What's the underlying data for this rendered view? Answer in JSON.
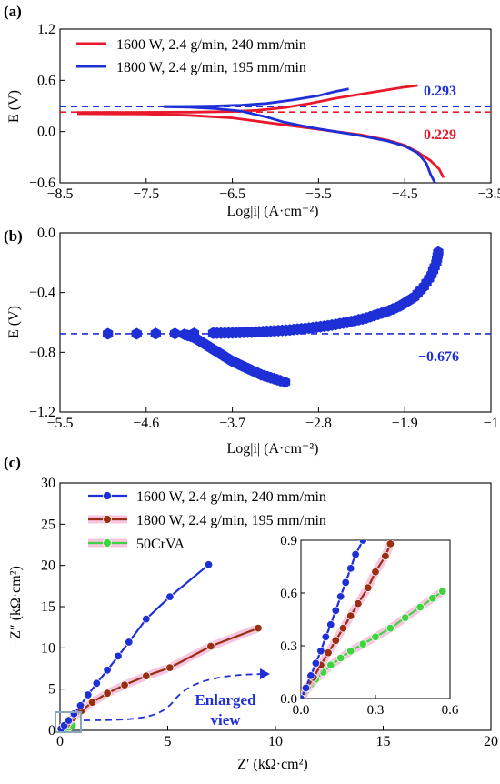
{
  "colors": {
    "red": "#e8192c",
    "blue": "#1f2fd6",
    "brown": "#9b2d12",
    "green": "#3fd43f",
    "pink": "#f4b6d8",
    "inset_box": "#8aa6b8"
  },
  "chart_data": [
    {
      "id": "a",
      "panel_label": "(a)",
      "type": "line",
      "xlabel": "Log|i| (A·cm⁻²)",
      "ylabel": "E (V)",
      "xlim": [
        -8.5,
        -3.5
      ],
      "ylim": [
        -0.6,
        1.2
      ],
      "xticks": [
        -8.5,
        -7.5,
        -6.5,
        -5.5,
        -4.5,
        -3.5
      ],
      "xtick_labels": [
        "−8.5",
        "−7.5",
        "−6.5",
        "−5.5",
        "−4.5",
        "−3.5"
      ],
      "yticks": [
        -0.6,
        0.0,
        0.6,
        1.2
      ],
      "ytick_labels": [
        "−0.6",
        "0.0",
        "0.6",
        "1.2"
      ],
      "legend_position": "top-left",
      "series": [
        {
          "name": "1600 W, 2.4 g/min, 240 mm/min",
          "color": "red",
          "anodic": [
            [
              -8.3,
              0.223
            ],
            [
              -7.5,
              0.225
            ],
            [
              -7.0,
              0.228
            ],
            [
              -6.5,
              0.235
            ],
            [
              -6.2,
              0.25
            ],
            [
              -5.9,
              0.28
            ],
            [
              -5.6,
              0.33
            ],
            [
              -5.3,
              0.39
            ],
            [
              -5.0,
              0.44
            ],
            [
              -4.7,
              0.49
            ],
            [
              -4.5,
              0.52
            ],
            [
              -4.35,
              0.54
            ]
          ],
          "cathodic": [
            [
              -8.3,
              0.21
            ],
            [
              -7.5,
              0.205
            ],
            [
              -7.0,
              0.19
            ],
            [
              -6.5,
              0.16
            ],
            [
              -6.2,
              0.12
            ],
            [
              -5.9,
              0.08
            ],
            [
              -5.6,
              0.04
            ],
            [
              -5.3,
              0.0
            ],
            [
              -5.0,
              -0.04
            ],
            [
              -4.7,
              -0.1
            ],
            [
              -4.5,
              -0.16
            ],
            [
              -4.35,
              -0.24
            ],
            [
              -4.2,
              -0.34
            ],
            [
              -4.1,
              -0.44
            ],
            [
              -4.05,
              -0.54
            ]
          ]
        },
        {
          "name": "1800 W, 2.4 g/min, 195 mm/min",
          "color": "blue",
          "anodic": [
            [
              -7.3,
              0.295
            ],
            [
              -7.0,
              0.296
            ],
            [
              -6.7,
              0.3
            ],
            [
              -6.4,
              0.31
            ],
            [
              -6.1,
              0.33
            ],
            [
              -5.8,
              0.37
            ],
            [
              -5.5,
              0.42
            ],
            [
              -5.3,
              0.47
            ],
            [
              -5.15,
              0.5
            ]
          ],
          "cathodic": [
            [
              -7.3,
              0.29
            ],
            [
              -7.0,
              0.285
            ],
            [
              -6.7,
              0.27
            ],
            [
              -6.4,
              0.24
            ],
            [
              -6.1,
              0.17
            ],
            [
              -5.9,
              0.11
            ],
            [
              -5.6,
              0.05
            ],
            [
              -5.3,
              0.0
            ],
            [
              -5.0,
              -0.05
            ],
            [
              -4.7,
              -0.11
            ],
            [
              -4.5,
              -0.17
            ],
            [
              -4.35,
              -0.25
            ],
            [
              -4.25,
              -0.37
            ],
            [
              -4.2,
              -0.5
            ],
            [
              -4.15,
              -0.6
            ]
          ]
        }
      ],
      "annotations": [
        {
          "text": "0.293",
          "color": "blue",
          "hline": 0.293
        },
        {
          "text": "0.229",
          "color": "red",
          "hline": 0.229
        }
      ]
    },
    {
      "id": "b",
      "panel_label": "(b)",
      "type": "scatter",
      "xlabel": "Log|i| (A·cm⁻²)",
      "ylabel": "E (V)",
      "xlim": [
        -5.5,
        -1.0
      ],
      "ylim": [
        -1.2,
        0.0
      ],
      "xticks": [
        -5.5,
        -4.6,
        -3.7,
        -2.8,
        -1.9,
        -1.0
      ],
      "xtick_labels": [
        "−5.5",
        "−4.6",
        "−3.7",
        "−2.8",
        "−1.9",
        "−1"
      ],
      "yticks": [
        -1.2,
        -0.8,
        -0.4,
        0.0
      ],
      "ytick_labels": [
        "−1.2",
        "−0.8",
        "−0.4",
        "0.0"
      ],
      "series": [
        {
          "color": "blue",
          "anodic": [
            [
              -5.0,
              -0.676
            ],
            [
              -4.7,
              -0.676
            ],
            [
              -4.5,
              -0.675
            ],
            [
              -4.3,
              -0.675
            ],
            [
              -4.1,
              -0.674
            ],
            [
              -3.9,
              -0.672
            ],
            [
              -3.7,
              -0.67
            ],
            [
              -3.5,
              -0.665
            ],
            [
              -3.3,
              -0.658
            ],
            [
              -3.1,
              -0.65
            ],
            [
              -2.9,
              -0.638
            ],
            [
              -2.7,
              -0.622
            ],
            [
              -2.5,
              -0.6
            ],
            [
              -2.3,
              -0.57
            ],
            [
              -2.1,
              -0.53
            ],
            [
              -1.95,
              -0.49
            ],
            [
              -1.8,
              -0.43
            ],
            [
              -1.7,
              -0.36
            ],
            [
              -1.62,
              -0.28
            ],
            [
              -1.57,
              -0.2
            ],
            [
              -1.55,
              -0.13
            ]
          ],
          "cathodic": [
            [
              -4.2,
              -0.68
            ],
            [
              -4.1,
              -0.7
            ],
            [
              -4.0,
              -0.74
            ],
            [
              -3.9,
              -0.78
            ],
            [
              -3.8,
              -0.82
            ],
            [
              -3.7,
              -0.86
            ],
            [
              -3.6,
              -0.89
            ],
            [
              -3.5,
              -0.92
            ],
            [
              -3.4,
              -0.95
            ],
            [
              -3.3,
              -0.97
            ],
            [
              -3.2,
              -0.99
            ],
            [
              -3.15,
              -1.0
            ]
          ]
        }
      ],
      "annotations": [
        {
          "text": "−0.676",
          "color": "blue",
          "hline": -0.676
        }
      ]
    },
    {
      "id": "c",
      "panel_label": "(c)",
      "type": "line",
      "xlabel": "Z′ (kΩ·cm²)",
      "ylabel": "−Z″ (kΩ·cm²)",
      "xlim": [
        0,
        20
      ],
      "ylim": [
        0,
        30
      ],
      "xticks": [
        0,
        5,
        10,
        15,
        20
      ],
      "yticks": [
        0,
        5,
        10,
        15,
        20,
        25,
        30
      ],
      "legend_position": "top-left",
      "series": [
        {
          "name": "1600 W, 2.4 g/min, 240 mm/min",
          "color": "blue",
          "points": [
            [
              0.05,
              0.2
            ],
            [
              0.2,
              0.6
            ],
            [
              0.4,
              1.2
            ],
            [
              0.65,
              2.0
            ],
            [
              0.95,
              3.0
            ],
            [
              1.3,
              4.3
            ],
            [
              1.7,
              5.7
            ],
            [
              2.2,
              7.3
            ],
            [
              2.7,
              9.0
            ],
            [
              3.2,
              10.7
            ],
            [
              4.0,
              13.5
            ],
            [
              5.1,
              16.2
            ],
            [
              6.9,
              20.1
            ]
          ]
        },
        {
          "name": "1800 W, 2.4 g/min, 195 mm/min",
          "color": "brown",
          "points": [
            [
              0.05,
              0.2
            ],
            [
              0.3,
              0.7
            ],
            [
              0.6,
              1.5
            ],
            [
              1.0,
              2.4
            ],
            [
              1.5,
              3.4
            ],
            [
              2.2,
              4.5
            ],
            [
              3.0,
              5.5
            ],
            [
              4.0,
              6.6
            ],
            [
              5.1,
              7.6
            ],
            [
              7.0,
              10.2
            ],
            [
              9.2,
              12.4
            ]
          ]
        },
        {
          "name": "50CrVA",
          "color": "green",
          "points": [
            [
              0.02,
              0.02
            ],
            [
              0.05,
              0.06
            ],
            [
              0.1,
              0.12
            ],
            [
              0.15,
              0.17
            ],
            [
              0.2,
              0.22
            ],
            [
              0.3,
              0.3
            ],
            [
              0.4,
              0.38
            ],
            [
              0.58,
              0.62
            ]
          ]
        }
      ],
      "inset": {
        "xlim": [
          0,
          0.6
        ],
        "ylim": [
          0,
          0.9
        ],
        "xticks": [
          0,
          0.3,
          0.6
        ],
        "yticks": [
          0,
          0.3,
          0.6,
          0.9
        ],
        "xtick_labels": [
          "0.0",
          "0.3",
          "0.6"
        ],
        "ytick_labels": [
          "0.0",
          "0.3",
          "0.6",
          "0.9"
        ],
        "series": [
          {
            "color": "blue",
            "points": [
              [
                0.0,
                0.0
              ],
              [
                0.02,
                0.06
              ],
              [
                0.04,
                0.13
              ],
              [
                0.06,
                0.2
              ],
              [
                0.08,
                0.27
              ],
              [
                0.1,
                0.35
              ],
              [
                0.12,
                0.42
              ],
              [
                0.14,
                0.5
              ],
              [
                0.16,
                0.58
              ],
              [
                0.18,
                0.66
              ],
              [
                0.2,
                0.74
              ],
              [
                0.22,
                0.82
              ],
              [
                0.25,
                0.9
              ]
            ]
          },
          {
            "color": "brown",
            "points": [
              [
                0.0,
                0.0
              ],
              [
                0.025,
                0.06
              ],
              [
                0.05,
                0.12
              ],
              [
                0.08,
                0.19
              ],
              [
                0.11,
                0.26
              ],
              [
                0.14,
                0.33
              ],
              [
                0.17,
                0.4
              ],
              [
                0.2,
                0.47
              ],
              [
                0.23,
                0.54
              ],
              [
                0.27,
                0.63
              ],
              [
                0.3,
                0.72
              ],
              [
                0.34,
                0.81
              ],
              [
                0.36,
                0.88
              ]
            ]
          },
          {
            "color": "green",
            "points": [
              [
                0.0,
                0.0
              ],
              [
                0.02,
                0.04
              ],
              [
                0.04,
                0.08
              ],
              [
                0.06,
                0.11
              ],
              [
                0.09,
                0.15
              ],
              [
                0.12,
                0.19
              ],
              [
                0.16,
                0.23
              ],
              [
                0.2,
                0.27
              ],
              [
                0.25,
                0.31
              ],
              [
                0.3,
                0.35
              ],
              [
                0.36,
                0.4
              ],
              [
                0.42,
                0.46
              ],
              [
                0.48,
                0.52
              ],
              [
                0.53,
                0.57
              ],
              [
                0.57,
                0.61
              ]
            ]
          }
        ]
      },
      "annotation": "Enlarged view",
      "annotation_lines": [
        "Enlarged",
        "view"
      ]
    }
  ]
}
